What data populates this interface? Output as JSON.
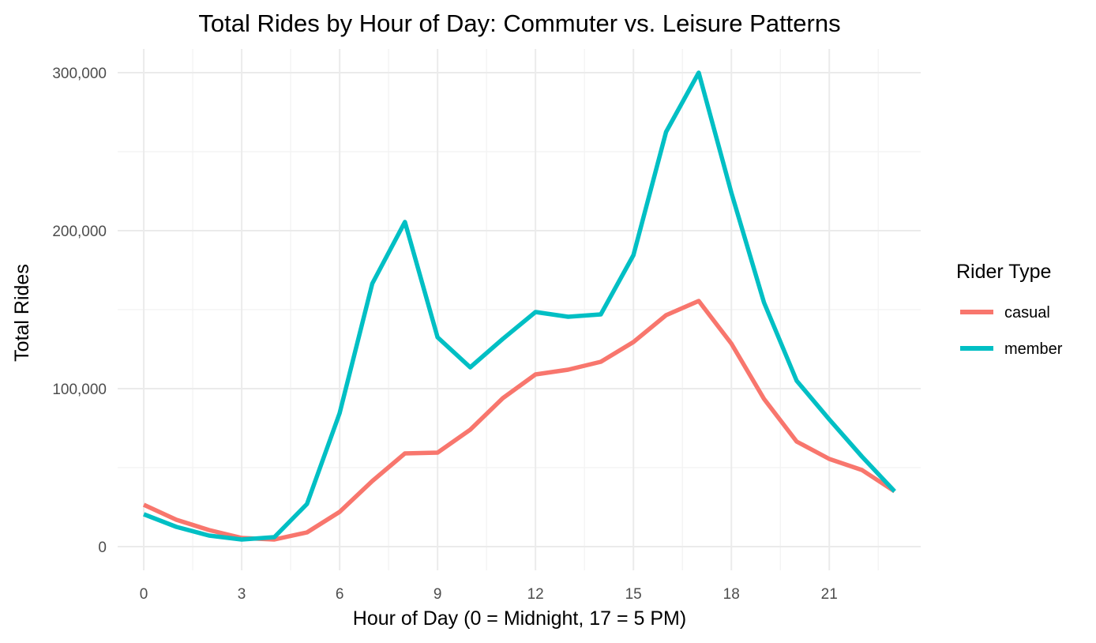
{
  "chart_data": {
    "type": "line",
    "title": "Total Rides by Hour of Day: Commuter vs. Leisure Patterns",
    "xlabel": "Hour of Day (0 = Midnight, 17 = 5 PM)",
    "ylabel": "Total Rides",
    "x": [
      0,
      1,
      2,
      3,
      4,
      5,
      6,
      7,
      8,
      9,
      10,
      11,
      12,
      13,
      14,
      15,
      16,
      17,
      18,
      19,
      20,
      21,
      22,
      23
    ],
    "x_ticks": [
      0,
      3,
      6,
      9,
      12,
      15,
      18,
      21
    ],
    "x_tick_labels": [
      "0",
      "3",
      "6",
      "9",
      "12",
      "15",
      "18",
      "21"
    ],
    "y_ticks": [
      0,
      100000,
      200000,
      300000
    ],
    "y_tick_labels": [
      "0",
      "100,000",
      "200,000",
      "300,000"
    ],
    "xlim": [
      -0.8,
      23.8
    ],
    "ylim": [
      -15000,
      315000
    ],
    "grid": true,
    "legend": {
      "title": "Rider Type",
      "position": "right"
    },
    "series": [
      {
        "name": "casual",
        "color": "#F8766D",
        "values": [
          26500,
          17000,
          10500,
          5500,
          4500,
          9000,
          22000,
          41500,
          59000,
          59500,
          74000,
          94000,
          109000,
          112000,
          117000,
          129500,
          146500,
          155500,
          128500,
          93500,
          66500,
          55500,
          48500,
          35000
        ]
      },
      {
        "name": "member",
        "color": "#00BFC4",
        "values": [
          20500,
          12500,
          7000,
          4500,
          6000,
          27000,
          84500,
          166500,
          205500,
          132500,
          113500,
          131500,
          148500,
          145500,
          147000,
          184500,
          262500,
          300000,
          224000,
          154500,
          105000,
          80500,
          57000,
          35000
        ]
      }
    ]
  }
}
